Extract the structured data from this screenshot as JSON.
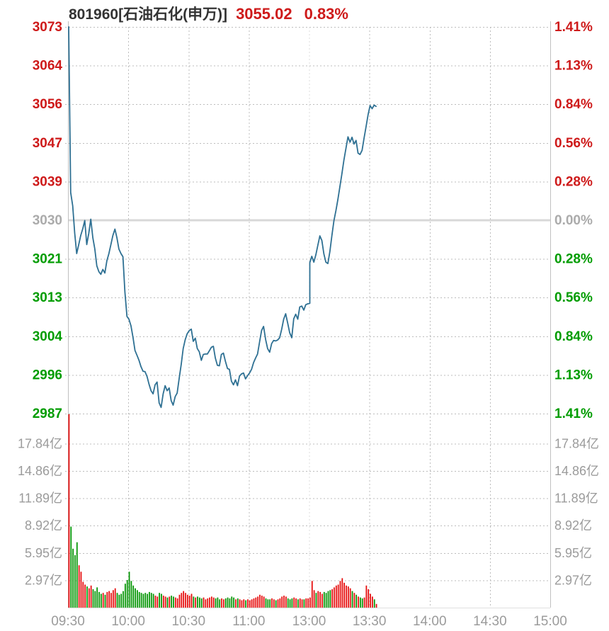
{
  "header": {
    "instrument": "801960[石油石化(申万)]",
    "price": "3055.02",
    "change_pct": "0.83%"
  },
  "colors": {
    "up": "#ce1a1a",
    "down": "#009c00",
    "bar_up": "#e60a0a",
    "bar_down": "#009400",
    "neutral": "#ababab",
    "line": "#2e7093",
    "grid": "#bdbdbd",
    "grid_light": "#dcdcdc",
    "prev_close_line": "#d8d8d8",
    "axis_text": "#9b9b9b",
    "border": "#c0c0c0",
    "header_text": "#333333"
  },
  "chart_data": {
    "type": "line+bar-intraday",
    "title": "801960[石油石化(申万)]",
    "last": 3055.02,
    "change_pct": 0.83,
    "prev_close": 3029.86,
    "axis_range_pct": 1.41,
    "session_minutes": 240,
    "lunch_break_index": 120,
    "left_axis_labels": [
      "3073",
      "3064",
      "3056",
      "3047",
      "3039",
      "3030",
      "3021",
      "3013",
      "3004",
      "2996",
      "2987"
    ],
    "right_axis_labels": [
      "1.41%",
      "1.13%",
      "0.84%",
      "0.56%",
      "0.28%",
      "0.00%",
      "0.28%",
      "0.56%",
      "0.84%",
      "1.13%",
      "1.41%"
    ],
    "volume_axis_labels": [
      "17.84亿",
      "14.86亿",
      "11.89亿",
      "8.92亿",
      "5.95亿",
      "2.97亿"
    ],
    "volume_unit_yi": 2.97,
    "volume_top_yi": 21.07,
    "x_labels": [
      "09:30",
      "10:00",
      "10:30",
      "11:00",
      "13:00",
      "13:30",
      "14:00",
      "14:30",
      "15:00"
    ],
    "price": [
      3072.6,
      3036,
      3033,
      3027,
      3022.5,
      3024.5,
      3026.5,
      3028,
      3029.8,
      3024.5,
      3027,
      3030.1,
      3026,
      3023.5,
      3019.8,
      3018.5,
      3017.9,
      3019,
      3018.2,
      3020.9,
      3022.5,
      3024.5,
      3026.5,
      3027.9,
      3026,
      3023.5,
      3022.5,
      3021.8,
      3014,
      3008.6,
      3008,
      3006.5,
      3004,
      3001.1,
      3000,
      2998.9,
      2997.5,
      2996.5,
      2996.4,
      2995.3,
      2993.6,
      2992.2,
      2991.5,
      2993.5,
      2994.1,
      2989.5,
      2988.5,
      2991.5,
      2993.3,
      2992.2,
      2992.8,
      2990,
      2989,
      2990.9,
      2991.7,
      2995,
      2998,
      3001.5,
      3003.5,
      3004.8,
      3005.5,
      3005.8,
      3003.1,
      3003.8,
      3001.5,
      3000.8,
      2998.9,
      3000.2,
      3000.3,
      3000.3,
      3001,
      3001.8,
      3002,
      2999.4,
      2997.8,
      2997.7,
      3000.2,
      3000.5,
      2998.7,
      2997.1,
      2996.9,
      2994.3,
      2993.5,
      2994.6,
      2993.3,
      2995.4,
      2995.9,
      2996.1,
      2994.8,
      2995.5,
      2996.1,
      2996.9,
      2998.4,
      2999.4,
      3000.3,
      3003,
      3005.5,
      3006.4,
      3003.5,
      3001.5,
      3000.7,
      3002.6,
      3003.3,
      3003.2,
      3003.4,
      3003.9,
      3005.8,
      3008,
      3009.2,
      3007.1,
      3005,
      3003.9,
      3008.1,
      3009.1,
      3008,
      3010.7,
      3010.9,
      3010,
      3011.2,
      3011.4,
      3011.5,
      3020.5,
      3021.9,
      3020.6,
      3022.2,
      3024.3,
      3026.4,
      3025.4,
      3022.4,
      3020.6,
      3020.3,
      3023,
      3026.5,
      3029.8,
      3032,
      3034.5,
      3037.4,
      3040.2,
      3043.2,
      3045.8,
      3048.3,
      3047.1,
      3048.2,
      3046.7,
      3047.5,
      3044.7,
      3044.4,
      3045.3,
      3048,
      3050.6,
      3053.2,
      3055.2,
      3054.5,
      3055.3,
      3055.02
    ],
    "volume": [
      21.0,
      8.8,
      6.4,
      5.7,
      7.1,
      4.6,
      3.9,
      2.8,
      2.5,
      2.3,
      2.1,
      2.4,
      2.0,
      1.8,
      2.2,
      1.7,
      1.5,
      1.6,
      1.4,
      1.7,
      1.8,
      1.6,
      1.9,
      2.1,
      1.6,
      1.4,
      1.5,
      1.8,
      2.6,
      3.0,
      3.9,
      2.9,
      2.4,
      2.1,
      1.9,
      1.7,
      1.6,
      1.5,
      1.6,
      1.5,
      1.7,
      1.6,
      1.5,
      1.3,
      1.2,
      1.6,
      1.5,
      1.3,
      1.2,
      1.1,
      1.2,
      1.3,
      1.2,
      1.1,
      1.0,
      1.4,
      1.6,
      1.8,
      1.6,
      1.4,
      1.3,
      1.5,
      1.2,
      1.1,
      1.2,
      1.1,
      1.0,
      1.1,
      0.9,
      1.0,
      1.1,
      1.2,
      1.1,
      1.0,
      1.1,
      0.9,
      1.0,
      0.9,
      1.0,
      1.1,
      1.0,
      1.2,
      1.1,
      0.9,
      1.0,
      0.9,
      0.8,
      0.9,
      0.8,
      0.9,
      0.8,
      0.9,
      1.0,
      1.1,
      1.2,
      1.4,
      1.3,
      1.2,
      1.0,
      0.9,
      0.9,
      1.0,
      0.9,
      0.8,
      0.9,
      1.0,
      1.2,
      1.3,
      1.2,
      1.0,
      0.9,
      1.0,
      1.1,
      1.0,
      0.9,
      1.0,
      0.9,
      0.9,
      1.0,
      1.0,
      1.1,
      2.9,
      1.9,
      1.6,
      1.8,
      1.7,
      1.5,
      1.7,
      1.6,
      1.8,
      1.9,
      2.0,
      2.2,
      2.4,
      2.5,
      2.9,
      3.2,
      2.7,
      2.4,
      2.3,
      2.1,
      1.8,
      1.6,
      1.4,
      1.2,
      1.1,
      1.0,
      1.1,
      2.4,
      2.0,
      1.5,
      1.2,
      0.9,
      0.4,
      0
    ]
  }
}
